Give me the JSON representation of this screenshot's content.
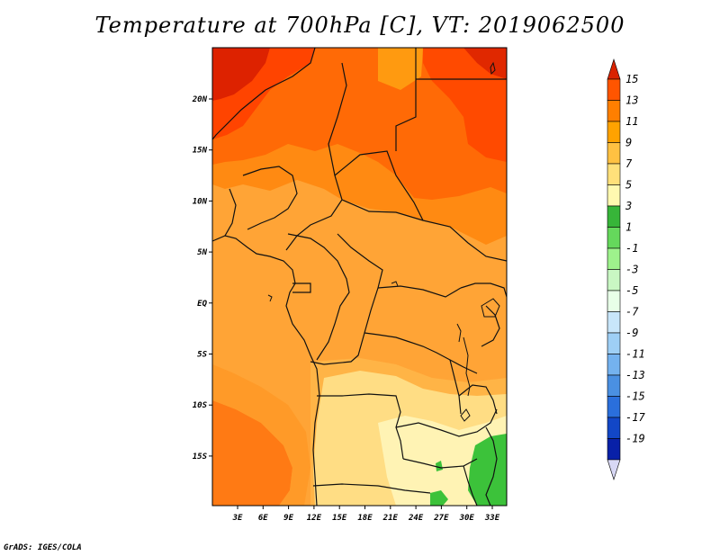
{
  "title": "Temperature at 700hPa [C], VT: 2019062500",
  "credit": "GrADS: IGES/COLA",
  "map": {
    "lon_ticks": [
      "3E",
      "6E",
      "9E",
      "12E",
      "15E",
      "18E",
      "21E",
      "24E",
      "27E",
      "30E",
      "33E"
    ],
    "lat_ticks": [
      "20N",
      "15N",
      "10N",
      "5N",
      "EQ",
      "5S",
      "10S",
      "15S"
    ]
  },
  "colorbar": {
    "labels": [
      "15",
      "13",
      "11",
      "9",
      "7",
      "5",
      "3",
      "1",
      "-1",
      "-3",
      "-5",
      "-7",
      "-9",
      "-11",
      "-13",
      "-15",
      "-17",
      "-19"
    ],
    "colors": [
      "#ff2a00",
      "#ff5500",
      "#ff7f00",
      "#ffa200",
      "#ffc142",
      "#ffe07a",
      "#fff9b0",
      "#37b539",
      "#65d85c",
      "#9ef28c",
      "#c9f7c3",
      "#e8ffe8",
      "#c8e6fa",
      "#9ecff5",
      "#74b2ef",
      "#4a90e2",
      "#2a6fdc",
      "#1247c7",
      "#0820a8",
      "#000070"
    ],
    "top_arrow_color": "#d92200",
    "bottom_arrow_color": "#d8d8f5"
  }
}
